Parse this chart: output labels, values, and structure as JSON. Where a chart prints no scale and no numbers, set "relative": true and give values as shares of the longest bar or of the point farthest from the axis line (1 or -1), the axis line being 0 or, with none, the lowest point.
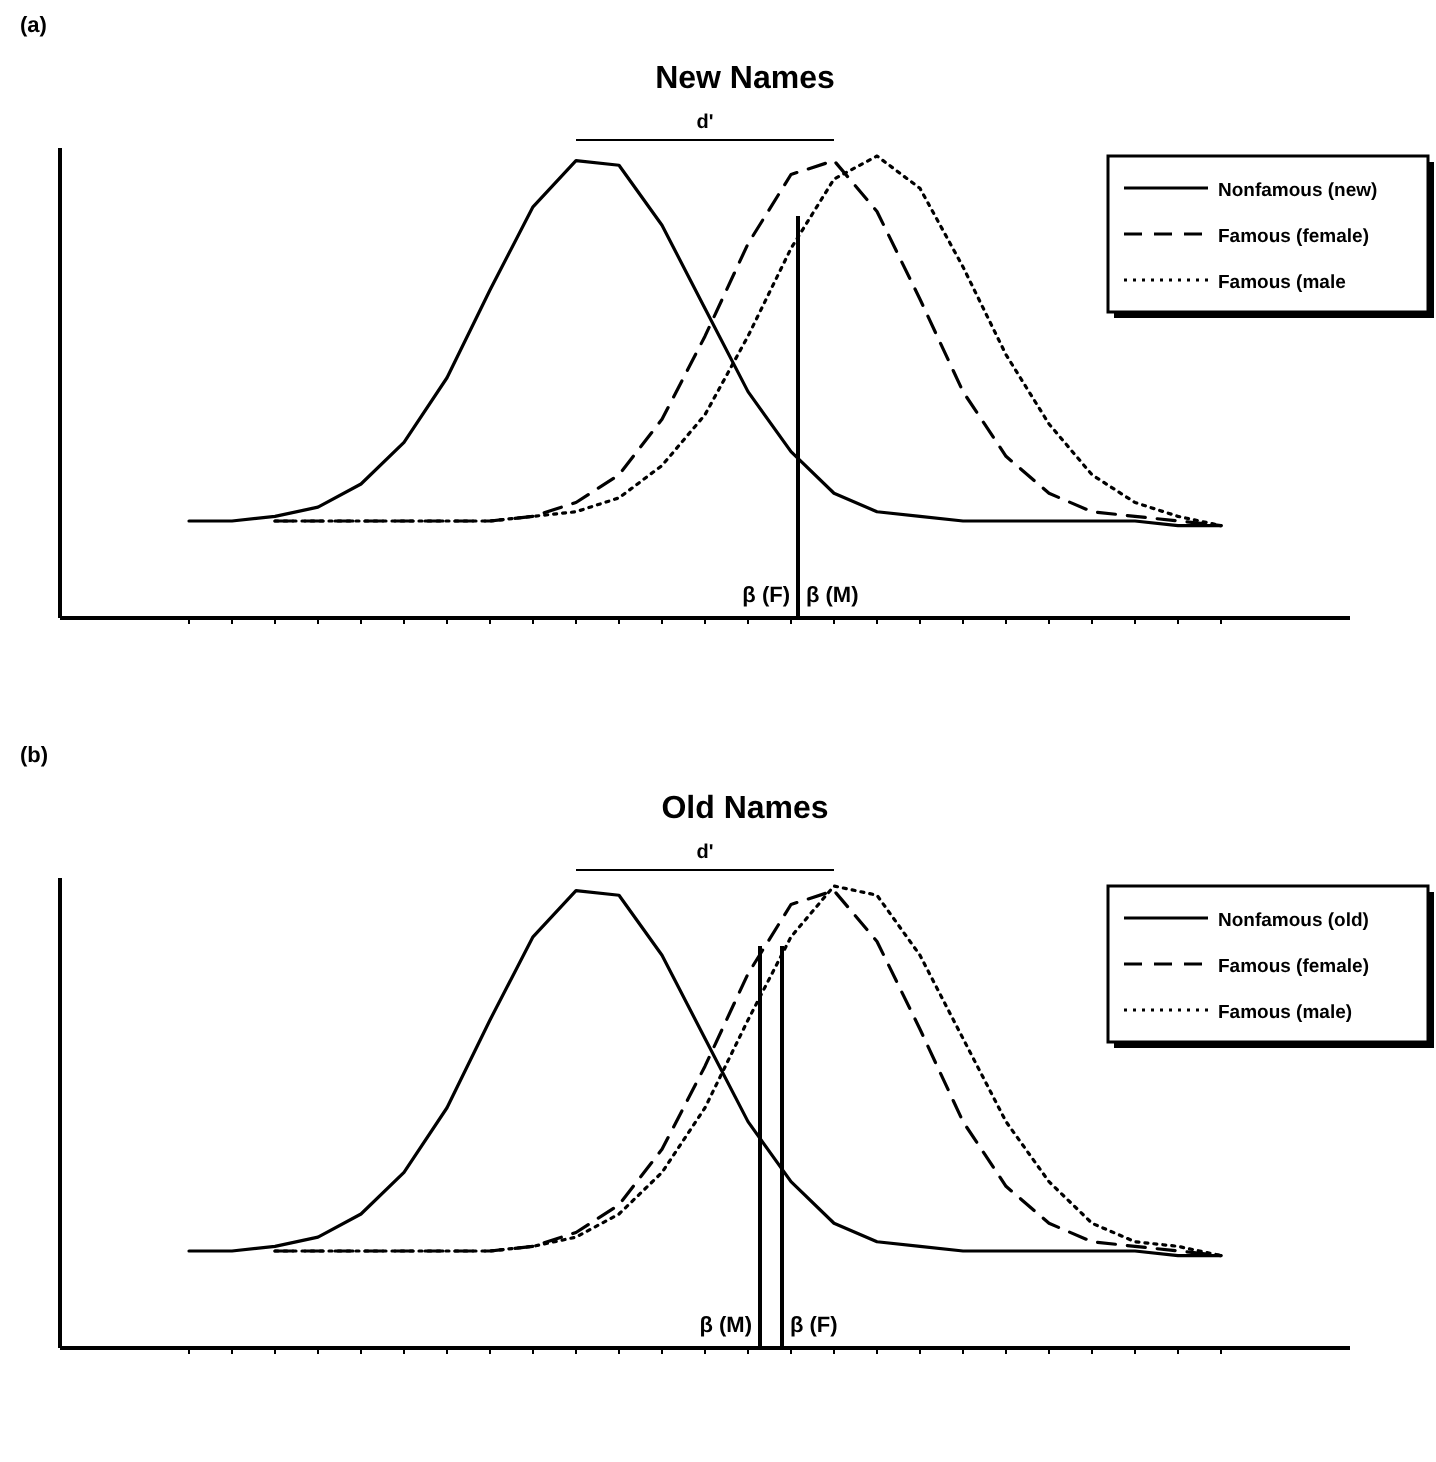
{
  "chart_data": [
    {
      "type": "line",
      "title": "New Names",
      "relative": true,
      "legend": "top right",
      "annotations": [
        "(a)",
        "d'",
        "β (F)",
        "β (M)"
      ],
      "categories": [
        null,
        null,
        null,
        null,
        null,
        null,
        null,
        null,
        null,
        null,
        null,
        null,
        null,
        null,
        null,
        null,
        null,
        null,
        null,
        null,
        null,
        null,
        null,
        null,
        null
      ],
      "series": [
        {
          "name": "Nonfamous (new)",
          "color": "#000000",
          "line_style": "solid",
          "values": [
            0.21,
            0.21,
            0.22,
            0.24,
            0.29,
            0.38,
            0.52,
            0.71,
            0.89,
            0.99,
            0.98,
            0.85,
            0.67,
            0.49,
            0.36,
            0.27,
            0.23,
            0.22,
            0.21,
            0.21,
            0.21,
            0.21,
            0.21,
            0.2,
            0.2
          ]
        },
        {
          "name": "Famous (female)",
          "color": "#000000",
          "line_style": "dashed",
          "values": [
            null,
            null,
            0.21,
            0.21,
            0.21,
            0.21,
            0.21,
            0.21,
            0.22,
            0.25,
            0.31,
            0.43,
            0.61,
            0.81,
            0.96,
            0.99,
            0.88,
            0.69,
            0.49,
            0.35,
            0.27,
            0.23,
            0.22,
            0.21,
            0.2
          ]
        },
        {
          "name": "Famous (male",
          "color": "#000000",
          "line_style": "dotted",
          "values": [
            null,
            null,
            0.21,
            0.21,
            0.21,
            0.21,
            0.21,
            0.21,
            0.22,
            0.23,
            0.26,
            0.33,
            0.44,
            0.61,
            0.8,
            0.95,
            1,
            0.93,
            0.76,
            0.57,
            0.42,
            0.31,
            0.25,
            0.22,
            0.2
          ]
        }
      ]
    },
    {
      "type": "line",
      "title": "Old Names",
      "relative": true,
      "legend": "top right",
      "annotations": [
        "(b)",
        "d'",
        "β (M)",
        "β (F)"
      ],
      "categories": [
        null,
        null,
        null,
        null,
        null,
        null,
        null,
        null,
        null,
        null,
        null,
        null,
        null,
        null,
        null,
        null,
        null,
        null,
        null,
        null,
        null,
        null,
        null,
        null,
        null
      ],
      "series": [
        {
          "name": "Nonfamous (old)",
          "color": "#000000",
          "line_style": "solid",
          "values": [
            0.21,
            0.21,
            0.22,
            0.24,
            0.29,
            0.38,
            0.52,
            0.71,
            0.89,
            0.99,
            0.98,
            0.85,
            0.67,
            0.49,
            0.36,
            0.27,
            0.23,
            0.22,
            0.21,
            0.21,
            0.21,
            0.21,
            0.21,
            0.2,
            0.2
          ]
        },
        {
          "name": "Famous (female)",
          "color": "#000000",
          "line_style": "dashed",
          "values": [
            null,
            null,
            0.21,
            0.21,
            0.21,
            0.21,
            0.21,
            0.21,
            0.22,
            0.25,
            0.31,
            0.43,
            0.61,
            0.81,
            0.96,
            0.99,
            0.88,
            0.69,
            0.49,
            0.35,
            0.27,
            0.23,
            0.22,
            0.21,
            0.2
          ]
        },
        {
          "name": "Famous (male)",
          "color": "#000000",
          "line_style": "dotted",
          "values": [
            null,
            null,
            0.21,
            0.21,
            0.21,
            0.21,
            0.21,
            0.21,
            0.22,
            0.24,
            0.29,
            0.38,
            0.52,
            0.71,
            0.89,
            1,
            0.98,
            0.85,
            0.67,
            0.49,
            0.36,
            0.27,
            0.23,
            0.22,
            0.2
          ]
        }
      ]
    }
  ]
}
